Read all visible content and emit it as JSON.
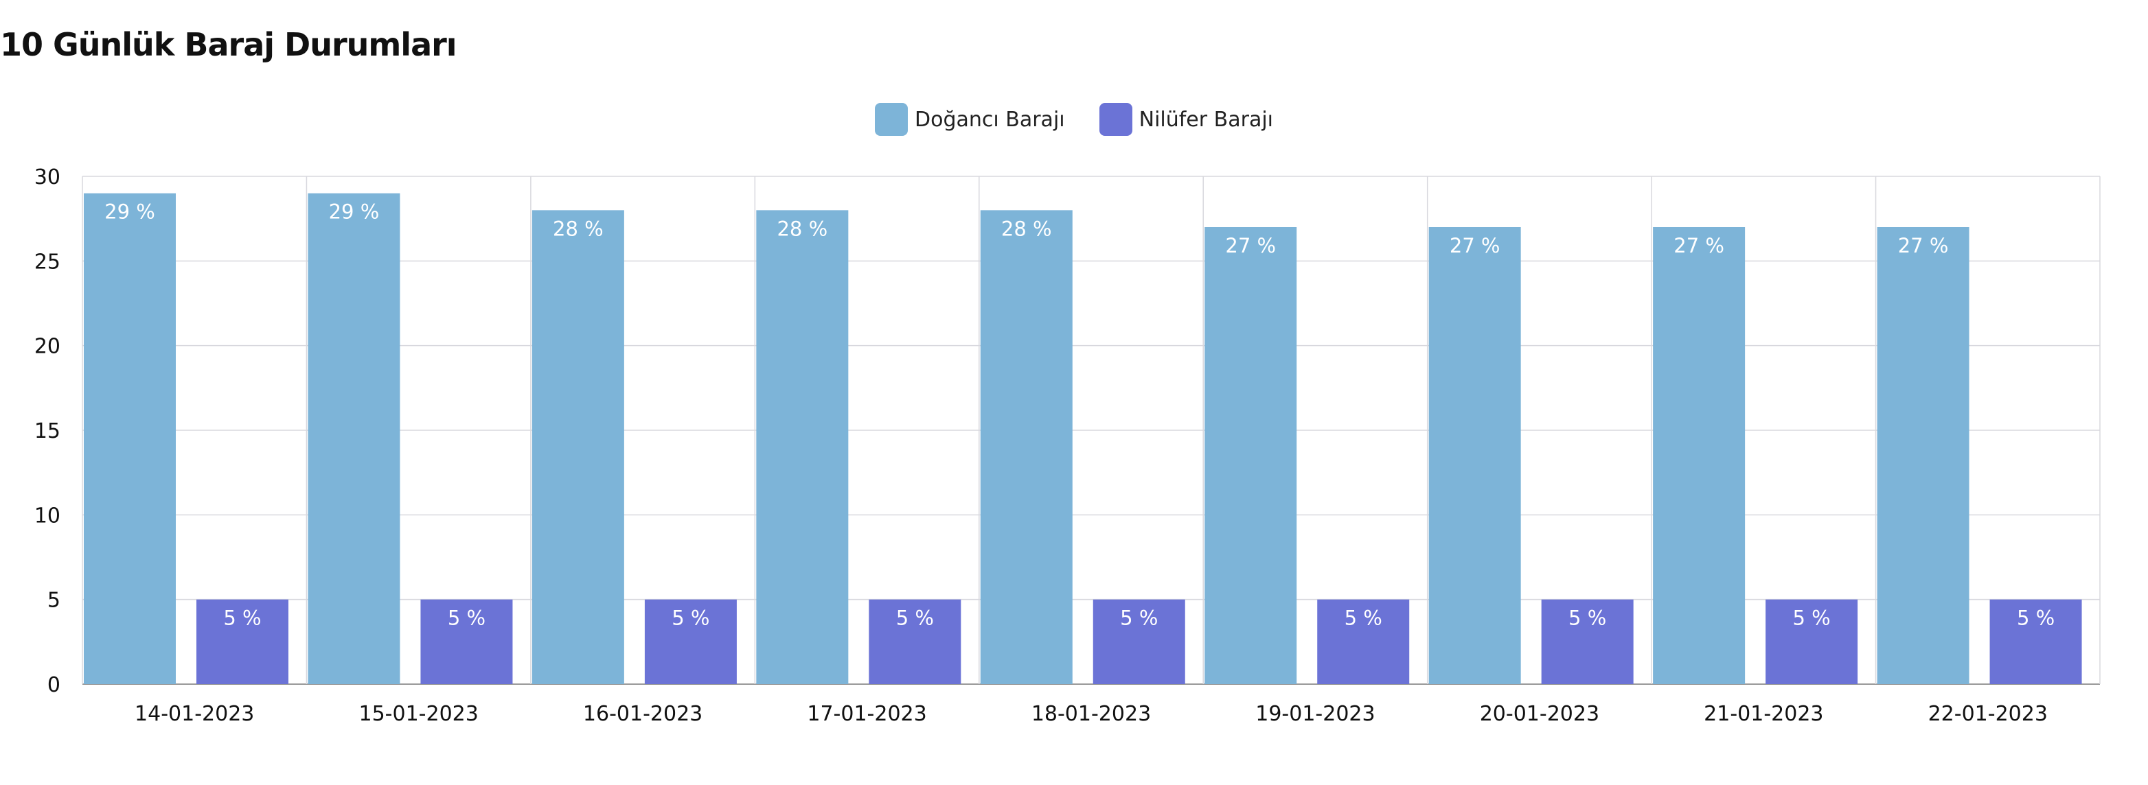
{
  "chart_data": {
    "type": "bar",
    "title": "10 Günlük Baraj Durumları",
    "xlabel": "",
    "ylabel": "",
    "ylim": [
      0,
      30
    ],
    "yticks": [
      0,
      5,
      10,
      15,
      20,
      25,
      30
    ],
    "grid": true,
    "legend_position": "top-center",
    "label_suffix": " %",
    "categories": [
      "14-01-2023",
      "15-01-2023",
      "16-01-2023",
      "17-01-2023",
      "18-01-2023",
      "19-01-2023",
      "20-01-2023",
      "21-01-2023",
      "22-01-2023"
    ],
    "series": [
      {
        "name": "Doğancı Barajı",
        "color": "#7db4d8",
        "values": [
          29,
          29,
          28,
          28,
          28,
          27,
          27,
          27,
          27
        ]
      },
      {
        "name": "Nilüfer Barajı",
        "color": "#6b73d6",
        "values": [
          5,
          5,
          5,
          5,
          5,
          5,
          5,
          5,
          5
        ]
      }
    ]
  }
}
